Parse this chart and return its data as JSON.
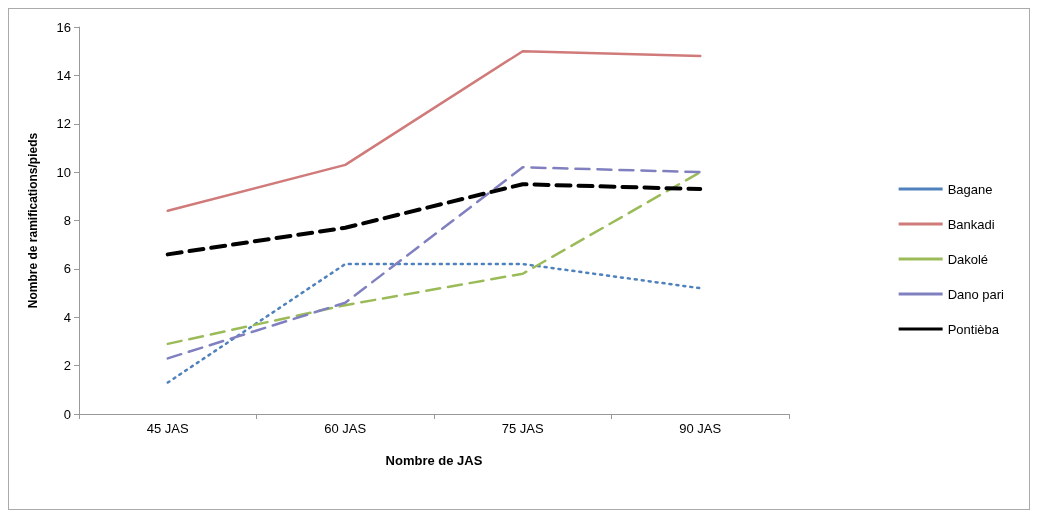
{
  "chart_data": {
    "type": "line",
    "xlabel": "Nombre de JAS",
    "ylabel": "Nombre de ramifications/pieds",
    "categories": [
      "45 JAS",
      "60 JAS",
      "75 JAS",
      "90 JAS"
    ],
    "series": [
      {
        "name": "Bagane",
        "color": "#4f81bd",
        "line_style": "dotted",
        "values": [
          1.3,
          6.2,
          6.2,
          5.2
        ]
      },
      {
        "name": "Bankadi",
        "color": "#d07a7a",
        "line_style": "solid",
        "values": [
          8.4,
          10.3,
          15.0,
          14.8
        ]
      },
      {
        "name": "Dakolé",
        "color": "#9bbb59",
        "line_style": "dashed",
        "values": [
          2.9,
          4.5,
          5.8,
          10.0
        ]
      },
      {
        "name": "Dano pari",
        "color": "#8080c0",
        "line_style": "dashed",
        "values": [
          2.3,
          4.6,
          10.2,
          10.0
        ]
      },
      {
        "name": "Pontièba",
        "color": "#000000",
        "line_style": "dashed",
        "values": [
          6.6,
          7.7,
          9.5,
          9.3
        ]
      }
    ],
    "ylim": [
      0,
      16
    ],
    "yticks": [
      0,
      2,
      4,
      6,
      8,
      10,
      12,
      14,
      16
    ],
    "grid": false,
    "legend": "right",
    "marker": "none"
  }
}
